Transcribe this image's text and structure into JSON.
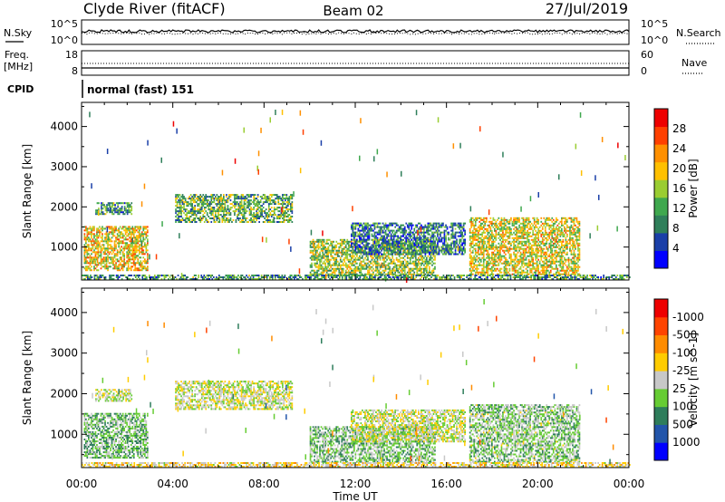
{
  "header": {
    "station": "Clyde River (fitACF)",
    "beam": "Beam 02",
    "date": "27/Jul/2019"
  },
  "noise_panel": {
    "left_label": "N.Sky",
    "right_label": "N.Search",
    "left_ticks": [
      "10^5",
      "10^0"
    ],
    "right_ticks": [
      "10^5",
      "10^0"
    ]
  },
  "freq_panel": {
    "left_label_1": "Freq.",
    "left_label_2": "[MHz]",
    "right_label": "Nave",
    "left_ticks": [
      "18",
      "8"
    ],
    "right_ticks": [
      "60",
      "0"
    ],
    "cpid_label": "CPID",
    "cpid_text": "normal (fast) 151"
  },
  "time_axis": {
    "label": "Time UT",
    "ticks": [
      "00:00",
      "04:00",
      "08:00",
      "12:00",
      "16:00",
      "20:00",
      "00:00"
    ]
  },
  "colors": {
    "power_scale": [
      "#0000ff",
      "#1a3fa8",
      "#2f7f5a",
      "#3fa84e",
      "#9acd32",
      "#ffc000",
      "#ff9000",
      "#ff4000",
      "#ee0000"
    ],
    "velocity_scale": [
      "#0000ff",
      "#2255aa",
      "#2e7d5b",
      "#66cc33",
      "#c8c8c8",
      "#ffcc00",
      "#ff8c00",
      "#ff4400",
      "#ee0000"
    ],
    "frame": "#000000"
  },
  "chart_data": [
    {
      "type": "heatmap",
      "title": "Power",
      "xlabel": "Time UT",
      "ylabel": "Slant Range [km]",
      "xlim": [
        "00:00",
        "24:00"
      ],
      "ylim": [
        180,
        4600
      ],
      "yticks": [
        1000,
        2000,
        3000,
        4000
      ],
      "colorbar": {
        "label": "Power [dB]",
        "ticks": [
          "4",
          "8",
          "12",
          "16",
          "20",
          "24",
          "28"
        ],
        "range": [
          0,
          30
        ]
      },
      "echo_regions": [
        {
          "t_start": 0.1,
          "t_end": 2.9,
          "range_low": 400,
          "range_high": 1500,
          "typical_db": 18
        },
        {
          "t_start": 0.6,
          "t_end": 2.2,
          "range_low": 1800,
          "range_high": 2100,
          "typical_db": 10
        },
        {
          "t_start": 4.1,
          "t_end": 9.2,
          "range_low": 1600,
          "range_high": 2300,
          "typical_db": 12
        },
        {
          "t_start": 10.0,
          "t_end": 15.5,
          "range_low": 300,
          "range_high": 1200,
          "typical_db": 14
        },
        {
          "t_start": 11.8,
          "t_end": 16.8,
          "range_low": 800,
          "range_high": 1600,
          "typical_db": 8
        },
        {
          "t_start": 17.0,
          "t_end": 21.8,
          "range_low": 300,
          "range_high": 1700,
          "typical_db": 17
        },
        {
          "t_start": 0.0,
          "t_end": 24.0,
          "range_low": 180,
          "range_high": 300,
          "typical_db": 10
        }
      ]
    },
    {
      "type": "heatmap",
      "title": "Velocity",
      "xlabel": "Time UT",
      "ylabel": "Slant Range [km]",
      "xlim": [
        "00:00",
        "24:00"
      ],
      "ylim": [
        180,
        4600
      ],
      "yticks": [
        1000,
        2000,
        3000,
        4000
      ],
      "colorbar": {
        "label": "Velocity [m s^-1]",
        "ticks": [
          "1000",
          "500",
          "100",
          "25",
          "-25",
          "-100",
          "-500",
          "-1000"
        ],
        "range": [
          -1200,
          1200
        ]
      },
      "echo_regions": [
        {
          "t_start": 0.1,
          "t_end": 2.9,
          "range_low": 400,
          "range_high": 1500,
          "typical_velocity": 300
        },
        {
          "t_start": 0.6,
          "t_end": 2.2,
          "range_low": 1800,
          "range_high": 2100,
          "typical_velocity": 50
        },
        {
          "t_start": 4.1,
          "t_end": 9.2,
          "range_low": 1600,
          "range_high": 2300,
          "typical_velocity": 0
        },
        {
          "t_start": 10.0,
          "t_end": 15.5,
          "range_low": 300,
          "range_high": 1200,
          "typical_velocity": 250
        },
        {
          "t_start": 11.8,
          "t_end": 16.8,
          "range_low": 800,
          "range_high": 1600,
          "typical_velocity": 0
        },
        {
          "t_start": 17.0,
          "t_end": 21.8,
          "range_low": 300,
          "range_high": 1700,
          "typical_velocity": 200
        },
        {
          "t_start": 0.0,
          "t_end": 24.0,
          "range_low": 180,
          "range_high": 300,
          "typical_velocity": -150
        }
      ]
    }
  ]
}
